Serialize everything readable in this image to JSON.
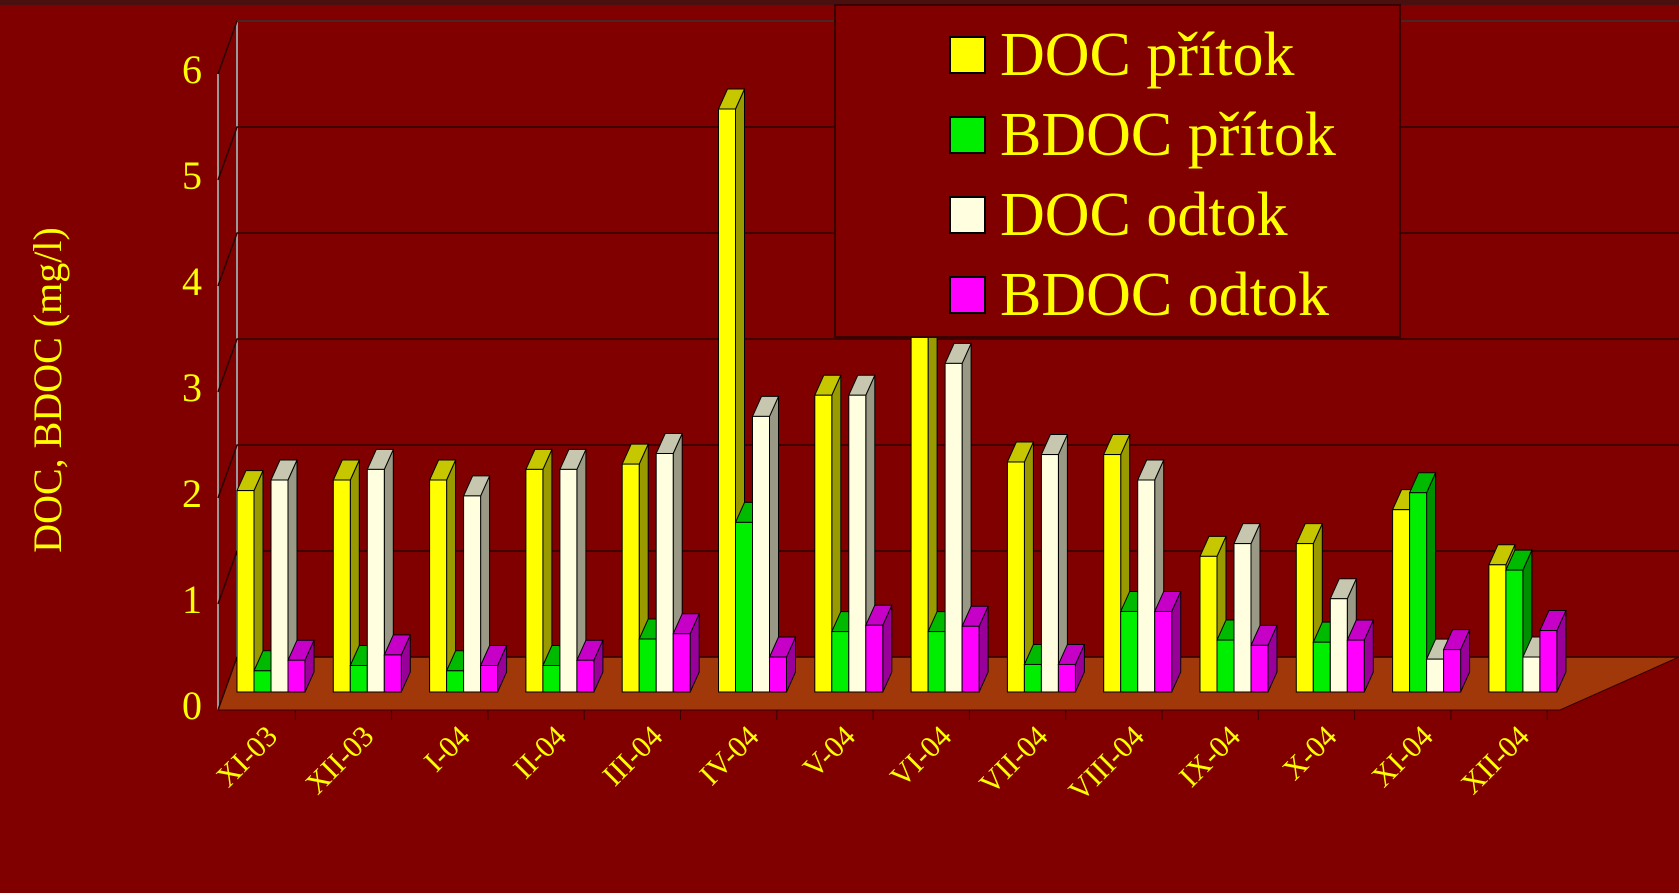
{
  "chart_data": {
    "type": "bar3d",
    "y_label": "DOC, BDOC (mg/l)",
    "categories": [
      "XI-03",
      "XII-03",
      "I-04",
      "II-04",
      "III-04",
      "IV-04",
      "V-04",
      "VI-04",
      "VII-04",
      "VIII-04",
      "IX-04",
      "X-04",
      "XI-04",
      "XII-04"
    ],
    "series": [
      {
        "name": "DOC přítok",
        "color": "#ffff00",
        "values": [
          1.9,
          2.0,
          2.0,
          2.1,
          2.15,
          5.5,
          2.8,
          3.5,
          2.17,
          2.24,
          1.28,
          1.4,
          1.72,
          1.2
        ]
      },
      {
        "name": "BDOC přítok",
        "color": "#00ee00",
        "values": [
          0.2,
          0.25,
          0.2,
          0.25,
          0.5,
          1.6,
          0.57,
          0.57,
          0.26,
          0.76,
          0.49,
          0.47,
          1.88,
          1.15
        ]
      },
      {
        "name": "DOC odtok",
        "color": "#ffffe0",
        "values": [
          2.0,
          2.1,
          1.85,
          2.1,
          2.25,
          2.6,
          2.8,
          3.1,
          2.24,
          2.0,
          1.4,
          0.88,
          0.31,
          0.33
        ]
      },
      {
        "name": "BDOC odtok",
        "color": "#ff00ff",
        "values": [
          0.3,
          0.35,
          0.25,
          0.3,
          0.55,
          0.33,
          0.63,
          0.62,
          0.26,
          0.76,
          0.44,
          0.49,
          0.4,
          0.58
        ]
      }
    ],
    "ylim": [
      0,
      6
    ],
    "yticks": [
      0,
      1,
      2,
      3,
      4,
      5,
      6
    ],
    "grid": true
  }
}
